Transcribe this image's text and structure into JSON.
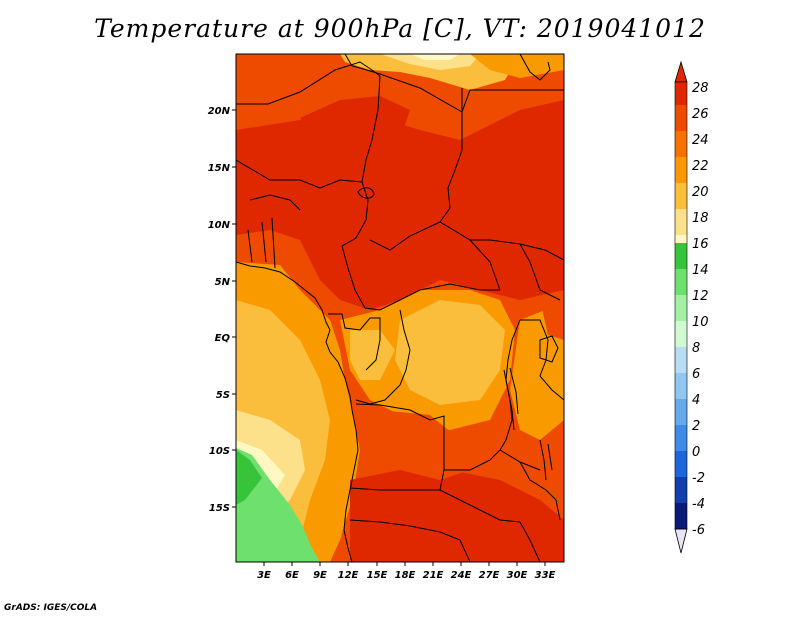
{
  "title": "Temperature at 900hPa [C], VT: 2019041012",
  "credit": "GrADS: IGES/COLA",
  "map": {
    "lat_labels": [
      "20N",
      "15N",
      "10N",
      "5N",
      "EQ",
      "5S",
      "10S",
      "15S"
    ],
    "lon_labels": [
      "3E",
      "6E",
      "9E",
      "12E",
      "15E",
      "18E",
      "21E",
      "24E",
      "27E",
      "30E",
      "33E"
    ]
  },
  "colorbar": {
    "levels": [
      "28",
      "26",
      "24",
      "22",
      "20",
      "18",
      "16",
      "14",
      "12",
      "10",
      "8",
      "6",
      "4",
      "2",
      "0",
      "-2",
      "-4",
      "-6"
    ],
    "colors": [
      "#e02800",
      "#ee4a00",
      "#f47200",
      "#f89a00",
      "#fbbd3c",
      "#fde08a",
      "#fff8c2",
      "#38c43a",
      "#6ee06e",
      "#a4f0a4",
      "#d2fad2",
      "#b8dcf4",
      "#90c6f2",
      "#66aaee",
      "#3c8ce6",
      "#1c68d6",
      "#1240aa",
      "#0a1a78",
      "#e8e4f8"
    ]
  }
}
